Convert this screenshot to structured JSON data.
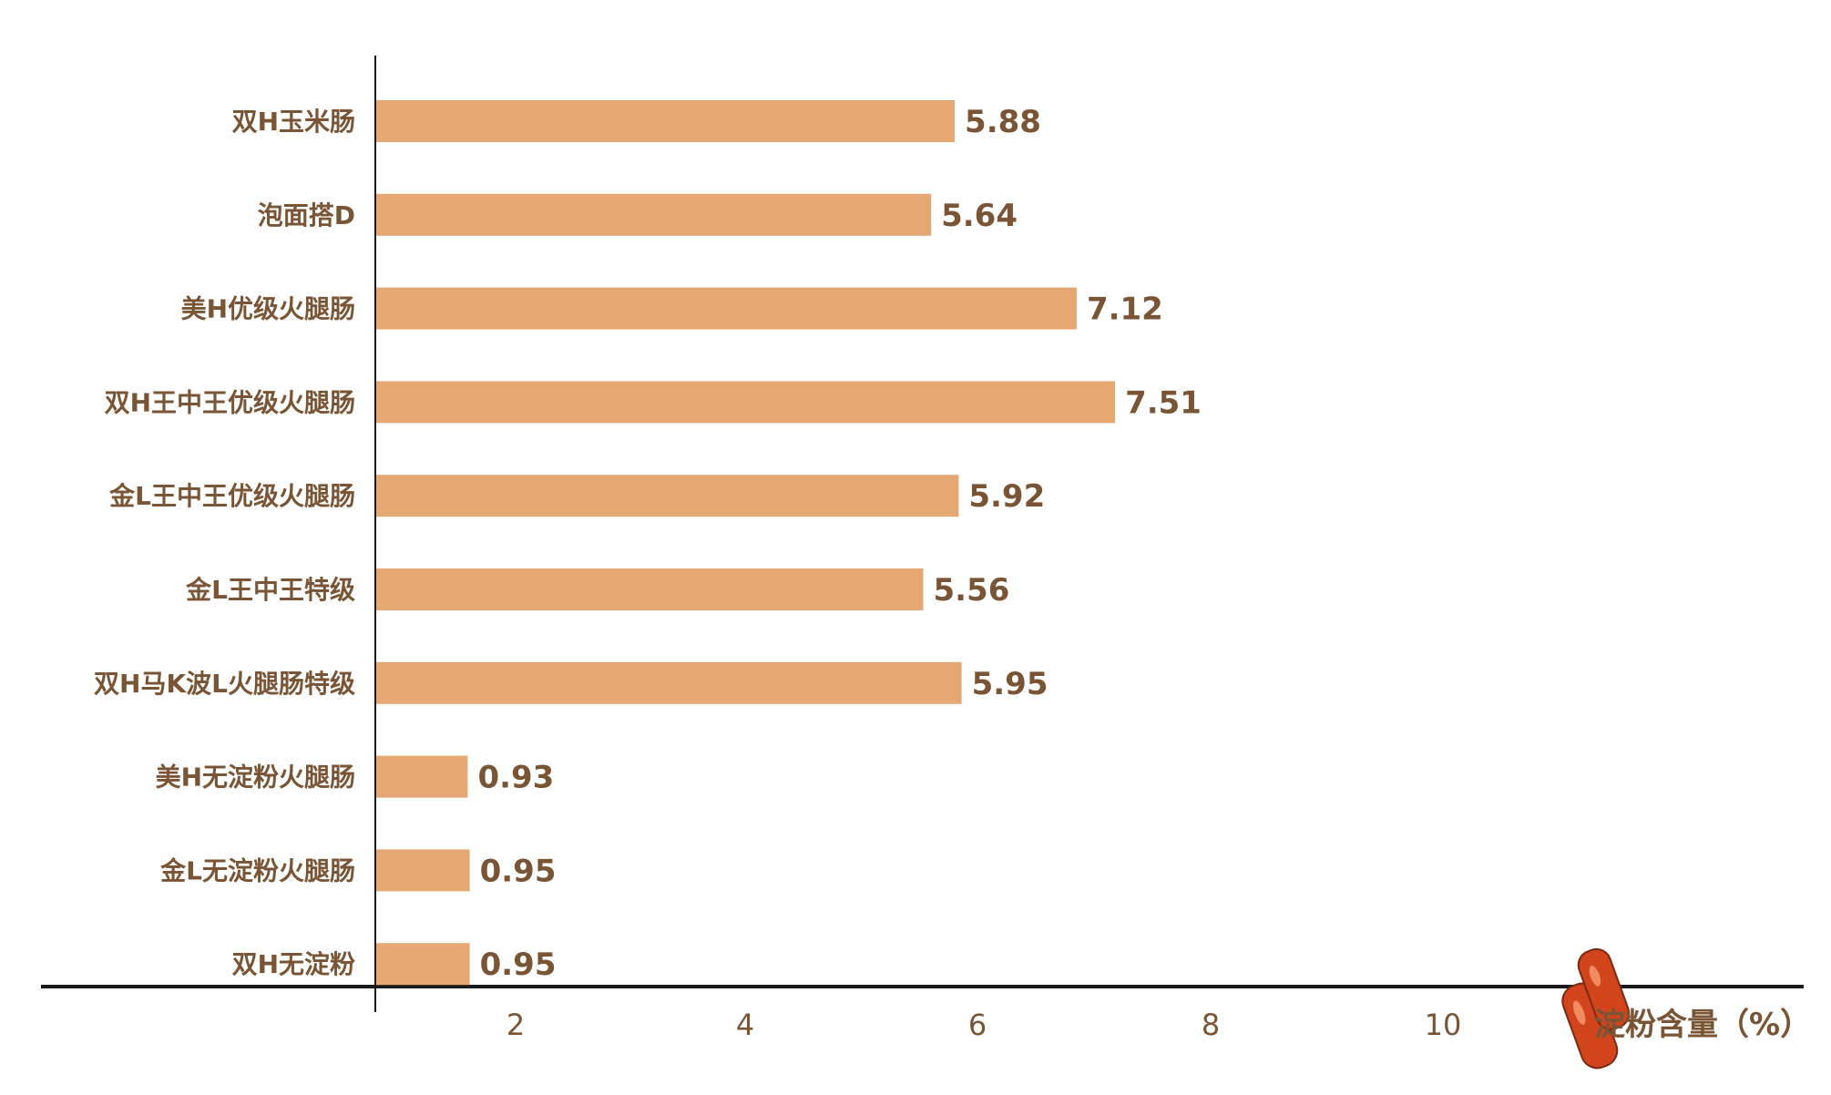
{
  "chart_data": {
    "type": "bar",
    "orientation": "horizontal",
    "categories": [
      "双H玉米肠",
      "泡面搭D",
      "美H优级火腿肠",
      "双H王中王优级火腿肠",
      "金L王中王优级火腿肠",
      "金L王中王特级",
      "双H马K波L火腿肠特级",
      "美H无淀粉火腿肠",
      "金L无淀粉火腿肠",
      "双H无淀粉"
    ],
    "values": [
      5.88,
      5.64,
      7.12,
      7.51,
      5.92,
      5.56,
      5.95,
      0.93,
      0.95,
      0.95
    ],
    "value_labels": [
      "5.88",
      "5.64",
      "7.12",
      "7.51",
      "5.92",
      "5.56",
      "5.95",
      "0.93",
      "0.95",
      "0.95"
    ],
    "xticks": [
      "2",
      "4",
      "6",
      "8",
      "10"
    ],
    "xlabel": "淀粉含量（%）",
    "ylabel": "",
    "grid": false,
    "colors": {
      "bar": "#e5a872",
      "text": "#7a5535",
      "axis": "#1a1a1a"
    },
    "icon": "sausage-icon"
  }
}
